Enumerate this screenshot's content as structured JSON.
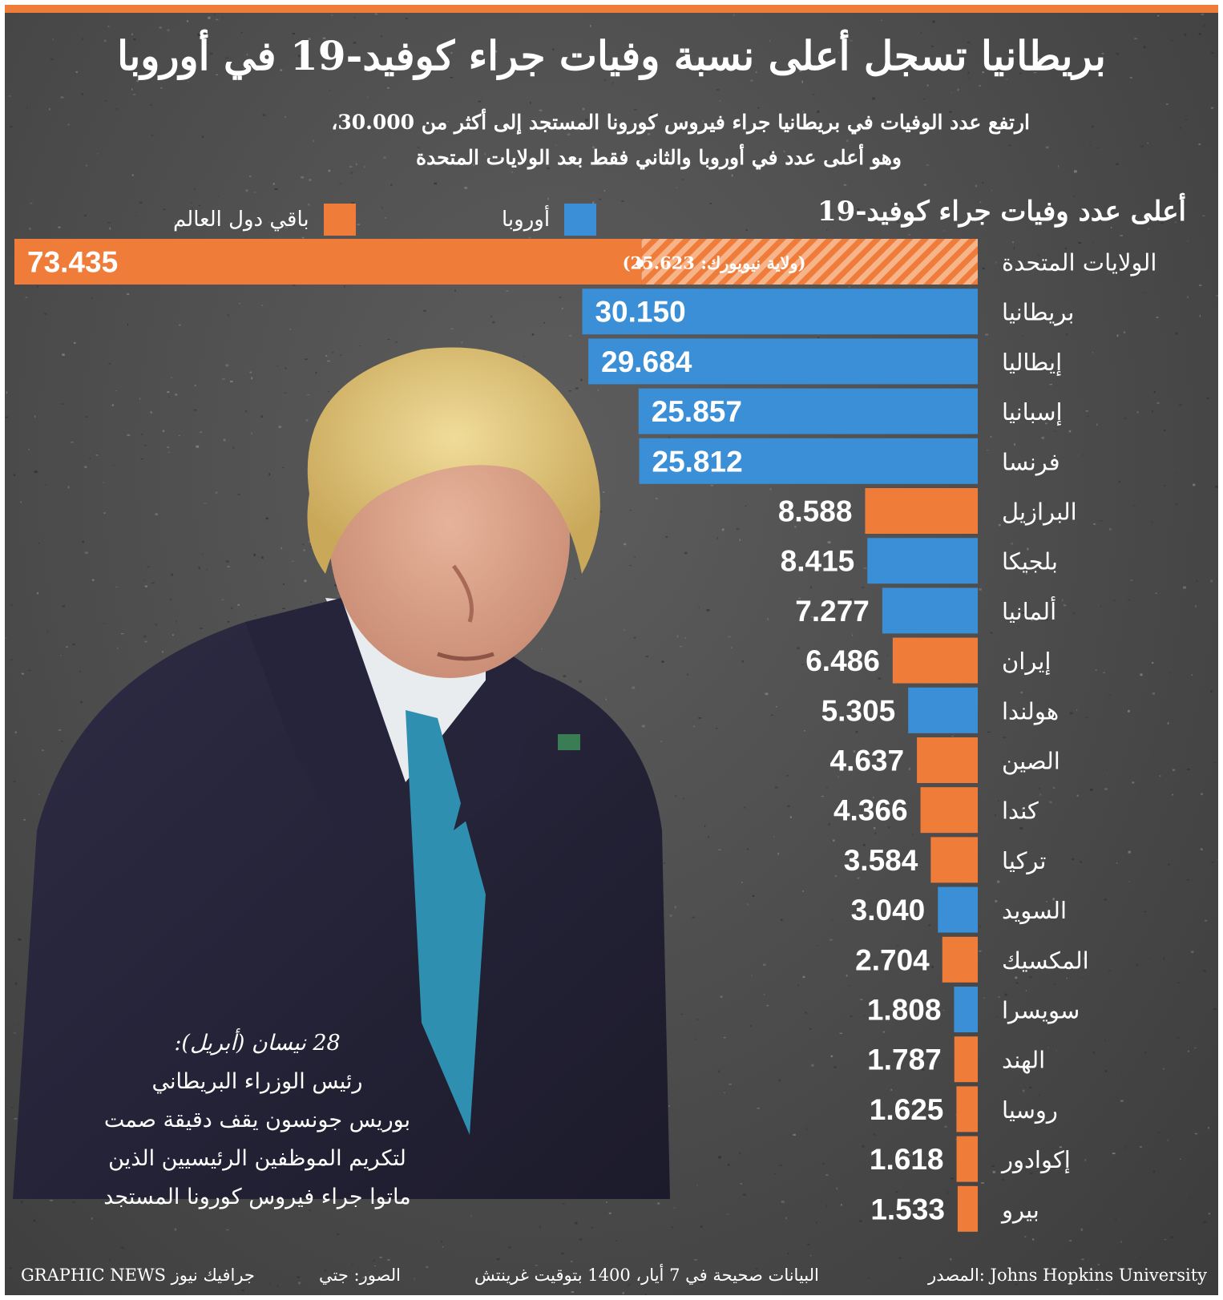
{
  "title": "بريطانيا تسجل أعلى نسبة وفيات جراء كوفيد-19 في أوروبا",
  "subtitle": {
    "line1": "ارتفع عدد الوفيات في بريطانيا جراء فيروس كورونا المستجد إلى أكثر من 30.000،",
    "line2": "وهو أعلى عدد في أوروبا والثاني فقط بعد الولايات المتحدة"
  },
  "legend": {
    "europe": "أوروبا",
    "rest": "باقي دول العالم"
  },
  "colors": {
    "europe": "#3a8fd6",
    "rest": "#f07c3a",
    "border": "#f07c3a"
  },
  "chart_data": {
    "type": "bar",
    "orientation": "horizontal",
    "title": "أعلى عدد وفيات جراء كوفيد-19",
    "xlim": [
      0,
      73435
    ],
    "annotation": "(ولاية نيويورك: 25.623)",
    "annotation_value": 25623,
    "categories": [
      "الولايات المتحدة",
      "بريطانيا",
      "إيطاليا",
      "إسبانيا",
      "فرنسا",
      "البرازيل",
      "بلجيكا",
      "ألمانيا",
      "إيران",
      "هولندا",
      "الصين",
      "كندا",
      "تركيا",
      "السويد",
      "المكسيك",
      "سويسرا",
      "الهند",
      "روسيا",
      "إكوادور",
      "بيرو"
    ],
    "values": [
      73435,
      30150,
      29684,
      25857,
      25812,
      8588,
      8415,
      7277,
      6486,
      5305,
      4637,
      4366,
      3584,
      3040,
      2704,
      1808,
      1787,
      1625,
      1618,
      1533
    ],
    "labels": [
      "73.435",
      "30.150",
      "29.684",
      "25.857",
      "25.812",
      "8.588",
      "8.415",
      "7.277",
      "6.486",
      "5.305",
      "4.637",
      "4.366",
      "3.584",
      "3.040",
      "2.704",
      "1.808",
      "1.787",
      "1.625",
      "1.618",
      "1.533"
    ],
    "groups": [
      "rest",
      "europe",
      "europe",
      "europe",
      "europe",
      "rest",
      "europe",
      "europe",
      "rest",
      "europe",
      "rest",
      "rest",
      "rest",
      "europe",
      "rest",
      "europe",
      "rest",
      "rest",
      "rest",
      "rest"
    ]
  },
  "caption": {
    "date": "28 نيسان (أبريل):",
    "line1": "رئيس الوزراء البريطاني",
    "line2": "بوريس جونسون يقف دقيقة صمت",
    "line3": "لتكريم الموظفين الرئيسيين الذين",
    "line4": "ماتوا جراء فيروس كورونا المستجد"
  },
  "footer": {
    "source": "المصدر: Johns Hopkins University",
    "data_note": "البيانات صحيحة في 7 أيار، 1400 بتوقيت غرينتش",
    "photos": "الصور: جتي",
    "brand": "GRAPHIC NEWS جرافيك نيوز"
  }
}
